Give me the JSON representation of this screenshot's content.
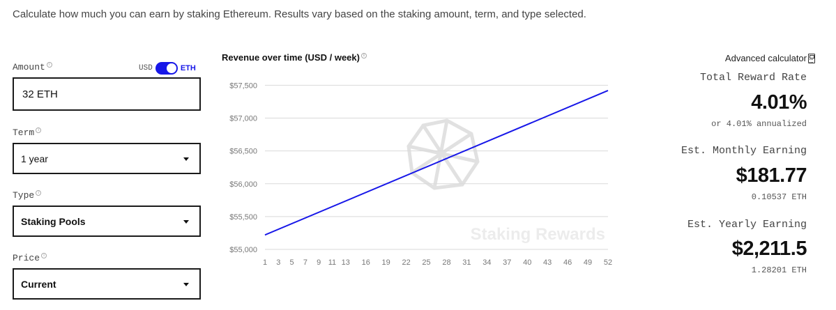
{
  "intro": "Calculate how much you can earn by staking Ethereum. Results vary based on the staking amount, term, and type selected.",
  "form": {
    "amount_label": "Amount",
    "amount_value": "32 ETH",
    "toggle_usd": "USD",
    "toggle_eth": "ETH",
    "term_label": "Term",
    "term_value": "1 year",
    "type_label": "Type",
    "type_value": "Staking Pools",
    "price_label": "Price",
    "price_value": "Current"
  },
  "chart_data": {
    "type": "line",
    "title": "Revenue over time (USD / week)",
    "watermark": "Staking Rewards",
    "x": [
      1,
      52
    ],
    "x_tick_labels": [
      "1",
      "3",
      "5",
      "7",
      "9",
      "11",
      "13",
      "16",
      "19",
      "22",
      "25",
      "28",
      "31",
      "34",
      "37",
      "40",
      "43",
      "46",
      "49",
      "52"
    ],
    "y_tick_values": [
      55000,
      55500,
      56000,
      56500,
      57000,
      57500
    ],
    "y_tick_labels": [
      "$55,000",
      "$55,500",
      "$56,000",
      "$56,500",
      "$57,000",
      "$57,500"
    ],
    "series": [
      {
        "name": "Revenue",
        "values": [
          55220,
          57420
        ]
      }
    ],
    "ylim": [
      55000,
      57600
    ],
    "grid": true,
    "line_color": "#1717e8"
  },
  "stats": {
    "advanced_calculator": "Advanced calculator",
    "reward_rate_label": "Total Reward Rate",
    "reward_rate_value": "4.01%",
    "reward_rate_sub": "or 4.01% annualized",
    "monthly_label": "Est. Monthly Earning",
    "monthly_value": "$181.77",
    "monthly_sub": "0.10537 ETH",
    "yearly_label": "Est. Yearly Earning",
    "yearly_value": "$2,211.5",
    "yearly_sub": "1.28201 ETH"
  }
}
